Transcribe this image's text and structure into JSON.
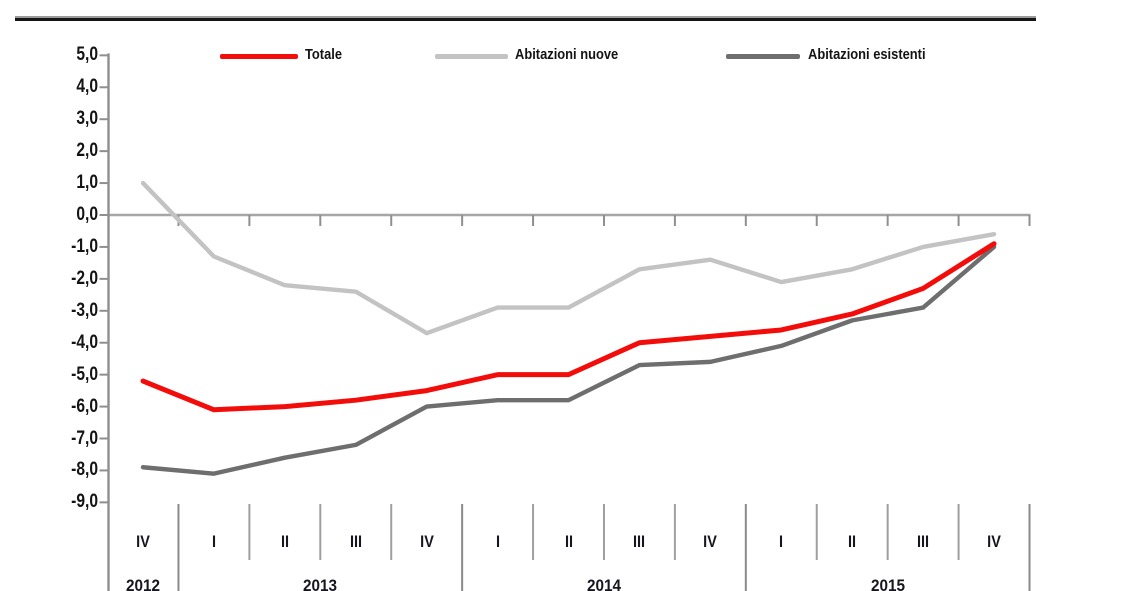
{
  "legend": [
    {
      "label": "Totale",
      "color": "#f20d0a"
    },
    {
      "label": "Abitazioni nuove",
      "color": "#c3c3c3"
    },
    {
      "label": "Abitazioni esistenti",
      "color": "#6e6e6e"
    }
  ],
  "chart_data": {
    "type": "line",
    "title": "",
    "categories": [
      "IV",
      "I",
      "II",
      "III",
      "IV",
      "I",
      "II",
      "III",
      "IV",
      "I",
      "II",
      "III",
      "IV"
    ],
    "x_groups": [
      {
        "year": "2012",
        "quarters": [
          "IV"
        ]
      },
      {
        "year": "2013",
        "quarters": [
          "I",
          "II",
          "III",
          "IV"
        ]
      },
      {
        "year": "2014",
        "quarters": [
          "I",
          "II",
          "III",
          "IV"
        ]
      },
      {
        "year": "2015",
        "quarters": [
          "I",
          "II",
          "III",
          "IV"
        ]
      }
    ],
    "series": [
      {
        "name": "Abitazioni nuove",
        "color": "#c3c3c3",
        "values": [
          1.0,
          -1.3,
          -2.2,
          -2.4,
          -3.7,
          -2.9,
          -2.9,
          -1.7,
          -1.4,
          -2.1,
          -1.7,
          -1.0,
          -0.6
        ]
      },
      {
        "name": "Abitazioni esistenti",
        "color": "#6e6e6e",
        "values": [
          -7.9,
          -8.1,
          -7.6,
          -7.2,
          -6.0,
          -5.8,
          -5.8,
          -4.7,
          -4.6,
          -4.1,
          -3.3,
          -2.9,
          -1.0
        ]
      },
      {
        "name": "Totale",
        "color": "#f20d0a",
        "values": [
          -5.2,
          -6.1,
          -6.0,
          -5.8,
          -5.5,
          -5.0,
          -5.0,
          -4.0,
          -3.8,
          -3.6,
          -3.1,
          -2.3,
          -0.9
        ]
      }
    ],
    "ylim": [
      -9,
      5
    ],
    "ytick_step": 1,
    "ytick_labels": [
      "5,0",
      "4,0",
      "3,0",
      "2,0",
      "1,0",
      "0,0",
      "-1,0",
      "-2,0",
      "-3,0",
      "-4,0",
      "-5,0",
      "-6,0",
      "-7,0",
      "-8,0",
      "-9,0"
    ],
    "xlabel": "",
    "ylabel": "",
    "grid": "zero-line-only",
    "legend_position": "top"
  }
}
